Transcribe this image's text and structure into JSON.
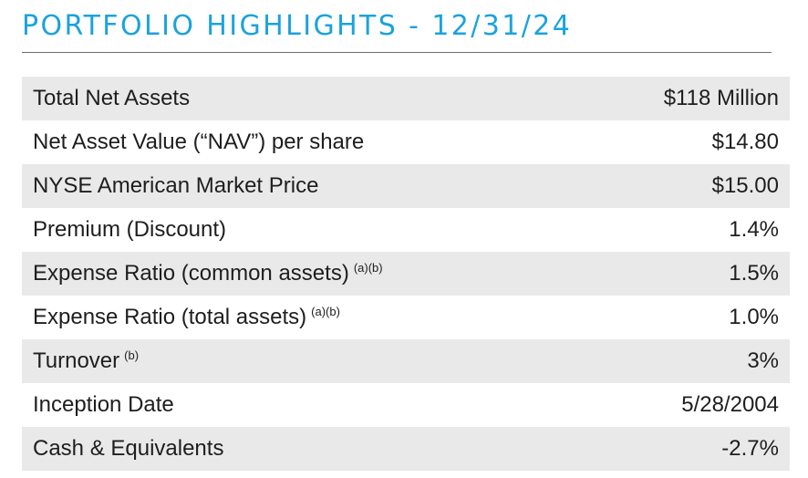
{
  "title": "PORTFOLIO HIGHLIGHTS - 12/31/24",
  "rows": [
    {
      "label": "Total Net Assets",
      "note": "",
      "value": "$118 Million"
    },
    {
      "label": "Net Asset Value (“NAV”) per share",
      "note": "",
      "value": "$14.80"
    },
    {
      "label": "NYSE American Market Price",
      "note": "",
      "value": "$15.00"
    },
    {
      "label": "Premium (Discount)",
      "note": "",
      "value": "1.4%"
    },
    {
      "label": "Expense Ratio (common assets)",
      "note": "(a)(b)",
      "value": "1.5%"
    },
    {
      "label": "Expense Ratio (total assets)",
      "note": "(a)(b)",
      "value": "1.0%"
    },
    {
      "label": "Turnover",
      "note": "(b)",
      "value": "3%"
    },
    {
      "label": "Inception Date",
      "note": "",
      "value": "5/28/2004"
    },
    {
      "label": "Cash & Equivalents",
      "note": "",
      "value": "-2.7%"
    }
  ],
  "colors": {
    "title": "#1aa3dd",
    "row_shade": "#e9e9e9",
    "text": "#1e1e1e",
    "rule": "#6e6e6e"
  }
}
